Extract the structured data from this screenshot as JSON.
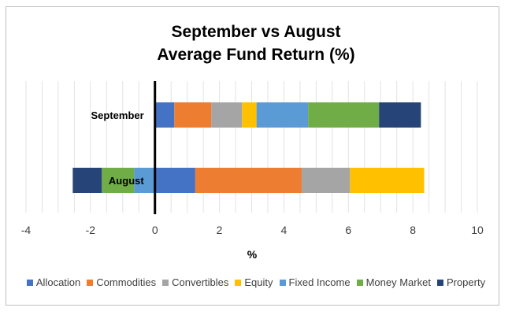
{
  "chart_data": {
    "type": "bar",
    "orientation": "horizontal",
    "stacked": true,
    "title": [
      "September vs August",
      "Average Fund Return (%)"
    ],
    "xlabel": "%",
    "ylabel": "",
    "xlim": [
      -4,
      10
    ],
    "xticks": [
      -4,
      -2,
      0,
      2,
      4,
      6,
      8,
      10
    ],
    "categories": [
      "September",
      "August"
    ],
    "legend_position": "bottom",
    "series": [
      {
        "name": "Allocation",
        "color": "#4472c4",
        "values": [
          0.6,
          1.25
        ]
      },
      {
        "name": "Commodities",
        "color": "#ed7d31",
        "values": [
          1.15,
          3.3
        ]
      },
      {
        "name": "Convertibles",
        "color": "#a5a5a5",
        "values": [
          0.95,
          1.5
        ]
      },
      {
        "name": "Equity",
        "color": "#ffc000",
        "values": [
          0.45,
          2.3
        ]
      },
      {
        "name": "Fixed Income",
        "color": "#5b9bd5",
        "values": [
          1.6,
          -0.65
        ]
      },
      {
        "name": "Money Market",
        "color": "#70ad47",
        "values": [
          2.2,
          -1.0
        ]
      },
      {
        "name": "Property",
        "color": "#264478",
        "values": [
          1.3,
          -0.9
        ]
      }
    ]
  }
}
